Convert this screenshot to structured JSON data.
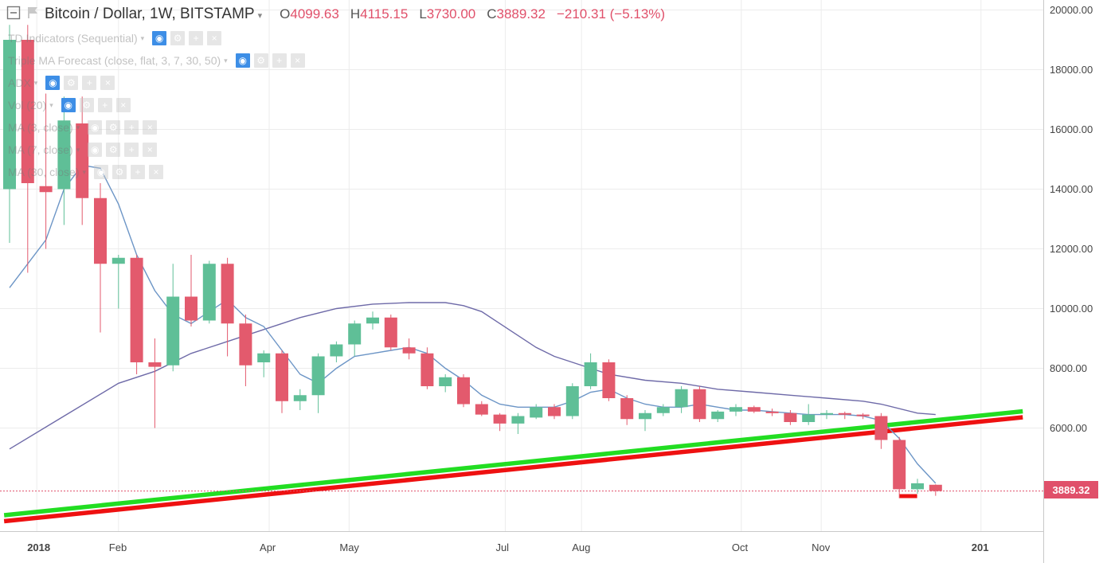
{
  "header": {
    "symbol": "Bitcoin / Dollar, 1W, BITSTAMP",
    "open_label": "O",
    "open_value": "4099.63",
    "high_label": "H",
    "high_value": "4115.15",
    "low_label": "L",
    "low_value": "3730.00",
    "close_label": "C",
    "close_value": "3889.32",
    "change": "−210.31 (−5.13%)"
  },
  "indicators": [
    {
      "label": "TD Indicators (Sequential)",
      "visible": true
    },
    {
      "label": "Triple MA Forecast (close, flat, 3, 7, 30, 50)",
      "visible": true
    },
    {
      "label": "ADX",
      "visible": true
    },
    {
      "label": "Vol (20)",
      "visible": true
    },
    {
      "label": "MA (3, close)",
      "visible": false
    },
    {
      "label": "MA (7, close)",
      "visible": false
    },
    {
      "label": "MA (30, close)",
      "visible": false
    }
  ],
  "last_price": "3889.32",
  "colors": {
    "up": "#5fbf97",
    "down": "#e35a6d",
    "ma_fast": "#6c95c6",
    "ma_slow": "#6e6aa8",
    "trend_green": "#22dd22",
    "trend_red": "#ee1111",
    "price_line": "#e0506a"
  },
  "chart_data": {
    "type": "candlestick",
    "title": "Bitcoin / Dollar, 1W, BITSTAMP",
    "y_ticks": [
      "20000.00",
      "18000.00",
      "16000.00",
      "14000.00",
      "12000.00",
      "10000.00",
      "8000.00",
      "6000.00"
    ],
    "ylim": [
      2400,
      20500
    ],
    "x_ticks": [
      {
        "label": "2018",
        "week": 1.5,
        "bold": true
      },
      {
        "label": "Feb",
        "week": 6,
        "bold": false
      },
      {
        "label": "Apr",
        "week": 14.3,
        "bold": false
      },
      {
        "label": "May",
        "week": 18.7,
        "bold": false
      },
      {
        "label": "Jul",
        "week": 27.3,
        "bold": false
      },
      {
        "label": "Aug",
        "week": 31.5,
        "bold": false
      },
      {
        "label": "Oct",
        "week": 40.3,
        "bold": false
      },
      {
        "label": "Nov",
        "week": 44.7,
        "bold": false
      },
      {
        "label": "201",
        "week": 53.5,
        "bold": true
      }
    ],
    "candles": [
      {
        "o": 14000,
        "h": 19500,
        "l": 12200,
        "c": 19000
      },
      {
        "o": 19000,
        "h": 19500,
        "l": 11200,
        "c": 14200
      },
      {
        "o": 14100,
        "h": 17200,
        "l": 12000,
        "c": 13900
      },
      {
        "o": 14000,
        "h": 17100,
        "l": 12800,
        "c": 16300
      },
      {
        "o": 16200,
        "h": 17100,
        "l": 12800,
        "c": 13700
      },
      {
        "o": 13700,
        "h": 14200,
        "l": 9200,
        "c": 11500
      },
      {
        "o": 11500,
        "h": 11800,
        "l": 10000,
        "c": 11700
      },
      {
        "o": 11700,
        "h": 11800,
        "l": 7800,
        "c": 8200
      },
      {
        "o": 8200,
        "h": 9000,
        "l": 6000,
        "c": 8050
      },
      {
        "o": 8100,
        "h": 11500,
        "l": 7900,
        "c": 10400
      },
      {
        "o": 10400,
        "h": 11800,
        "l": 9400,
        "c": 9600
      },
      {
        "o": 9600,
        "h": 11600,
        "l": 9500,
        "c": 11500
      },
      {
        "o": 11500,
        "h": 11700,
        "l": 8400,
        "c": 9500
      },
      {
        "o": 9500,
        "h": 9800,
        "l": 7400,
        "c": 8100
      },
      {
        "o": 8200,
        "h": 8600,
        "l": 7700,
        "c": 8500
      },
      {
        "o": 8500,
        "h": 8600,
        "l": 6500,
        "c": 6900
      },
      {
        "o": 6900,
        "h": 7300,
        "l": 6600,
        "c": 7100
      },
      {
        "o": 7100,
        "h": 8500,
        "l": 6500,
        "c": 8400
      },
      {
        "o": 8400,
        "h": 8900,
        "l": 8200,
        "c": 8800
      },
      {
        "o": 8800,
        "h": 9600,
        "l": 8400,
        "c": 9500
      },
      {
        "o": 9500,
        "h": 9900,
        "l": 9300,
        "c": 9700
      },
      {
        "o": 9700,
        "h": 9800,
        "l": 8600,
        "c": 8700
      },
      {
        "o": 8700,
        "h": 9000,
        "l": 8300,
        "c": 8500
      },
      {
        "o": 8500,
        "h": 8700,
        "l": 7300,
        "c": 7400
      },
      {
        "o": 7400,
        "h": 7800,
        "l": 7200,
        "c": 7700
      },
      {
        "o": 7700,
        "h": 7800,
        "l": 6700,
        "c": 6800
      },
      {
        "o": 6800,
        "h": 6900,
        "l": 6400,
        "c": 6450
      },
      {
        "o": 6450,
        "h": 6500,
        "l": 5900,
        "c": 6150
      },
      {
        "o": 6150,
        "h": 6500,
        "l": 5800,
        "c": 6400
      },
      {
        "o": 6350,
        "h": 6800,
        "l": 6300,
        "c": 6700
      },
      {
        "o": 6700,
        "h": 6800,
        "l": 6300,
        "c": 6400
      },
      {
        "o": 6400,
        "h": 7500,
        "l": 6300,
        "c": 7400
      },
      {
        "o": 7400,
        "h": 8500,
        "l": 7300,
        "c": 8200
      },
      {
        "o": 8200,
        "h": 8300,
        "l": 6900,
        "c": 7000
      },
      {
        "o": 7000,
        "h": 7100,
        "l": 6100,
        "c": 6300
      },
      {
        "o": 6300,
        "h": 6600,
        "l": 5900,
        "c": 6500
      },
      {
        "o": 6500,
        "h": 6800,
        "l": 6400,
        "c": 6700
      },
      {
        "o": 6700,
        "h": 7400,
        "l": 6500,
        "c": 7300
      },
      {
        "o": 7300,
        "h": 7400,
        "l": 6200,
        "c": 6300
      },
      {
        "o": 6300,
        "h": 6600,
        "l": 6200,
        "c": 6550
      },
      {
        "o": 6550,
        "h": 6800,
        "l": 6400,
        "c": 6700
      },
      {
        "o": 6700,
        "h": 6750,
        "l": 6500,
        "c": 6550
      },
      {
        "o": 6550,
        "h": 6650,
        "l": 6400,
        "c": 6500
      },
      {
        "o": 6500,
        "h": 6600,
        "l": 6100,
        "c": 6200
      },
      {
        "o": 6200,
        "h": 6800,
        "l": 6100,
        "c": 6450
      },
      {
        "o": 6450,
        "h": 6600,
        "l": 6300,
        "c": 6500
      },
      {
        "o": 6500,
        "h": 6550,
        "l": 6300,
        "c": 6450
      },
      {
        "o": 6450,
        "h": 6500,
        "l": 6300,
        "c": 6400
      },
      {
        "o": 6400,
        "h": 6500,
        "l": 5300,
        "c": 5600
      },
      {
        "o": 5600,
        "h": 5700,
        "l": 3650,
        "c": 3950
      },
      {
        "o": 3950,
        "h": 4300,
        "l": 3800,
        "c": 4150
      },
      {
        "o": 4099.63,
        "h": 4115.15,
        "l": 3730.0,
        "c": 3889.32
      }
    ],
    "forecast_bar": {
      "week": 49.5,
      "value": 3720
    },
    "ma_fast": [
      [
        0,
        10700
      ],
      [
        2,
        12300
      ],
      [
        3,
        14000
      ],
      [
        4,
        14800
      ],
      [
        5,
        14700
      ],
      [
        6,
        13500
      ],
      [
        7,
        11800
      ],
      [
        8,
        10600
      ],
      [
        9,
        9800
      ],
      [
        10,
        9500
      ],
      [
        11,
        9900
      ],
      [
        12,
        10300
      ],
      [
        13,
        9700
      ],
      [
        14,
        9400
      ],
      [
        15,
        8600
      ],
      [
        16,
        7800
      ],
      [
        17,
        7500
      ],
      [
        18,
        8000
      ],
      [
        19,
        8400
      ],
      [
        20,
        8500
      ],
      [
        21,
        8600
      ],
      [
        22,
        8700
      ],
      [
        23,
        8500
      ],
      [
        24,
        8000
      ],
      [
        25,
        7600
      ],
      [
        26,
        7100
      ],
      [
        27,
        6800
      ],
      [
        28,
        6700
      ],
      [
        29,
        6700
      ],
      [
        30,
        6700
      ],
      [
        31,
        6900
      ],
      [
        32,
        7200
      ],
      [
        33,
        7300
      ],
      [
        34,
        7000
      ],
      [
        35,
        6800
      ],
      [
        36,
        6700
      ],
      [
        37,
        6700
      ],
      [
        38,
        6800
      ],
      [
        39,
        6700
      ],
      [
        40,
        6600
      ],
      [
        41,
        6600
      ],
      [
        42,
        6550
      ],
      [
        43,
        6500
      ],
      [
        44,
        6450
      ],
      [
        45,
        6450
      ],
      [
        46,
        6450
      ],
      [
        47,
        6400
      ],
      [
        48,
        6250
      ],
      [
        49,
        5650
      ],
      [
        50,
        4800
      ],
      [
        51,
        4150
      ]
    ],
    "ma_slow": [
      [
        0,
        5300
      ],
      [
        3,
        6400
      ],
      [
        6,
        7500
      ],
      [
        8,
        7900
      ],
      [
        10,
        8500
      ],
      [
        12,
        8900
      ],
      [
        14,
        9300
      ],
      [
        16,
        9700
      ],
      [
        18,
        10000
      ],
      [
        20,
        10150
      ],
      [
        22,
        10200
      ],
      [
        24,
        10200
      ],
      [
        25,
        10100
      ],
      [
        26,
        9900
      ],
      [
        27,
        9500
      ],
      [
        28,
        9100
      ],
      [
        29,
        8700
      ],
      [
        30,
        8400
      ],
      [
        31,
        8200
      ],
      [
        32,
        8000
      ],
      [
        33,
        7800
      ],
      [
        35,
        7600
      ],
      [
        37,
        7500
      ],
      [
        39,
        7300
      ],
      [
        41,
        7200
      ],
      [
        43,
        7100
      ],
      [
        45,
        7000
      ],
      [
        47,
        6900
      ],
      [
        48,
        6800
      ],
      [
        50,
        6500
      ],
      [
        51,
        6450
      ]
    ],
    "trend_lines": [
      {
        "color": "green",
        "from": [
          -0.3,
          3080
        ],
        "to": [
          55.8,
          6560
        ]
      },
      {
        "color": "red",
        "from": [
          -0.3,
          2880
        ],
        "to": [
          55.8,
          6360
        ]
      }
    ]
  }
}
